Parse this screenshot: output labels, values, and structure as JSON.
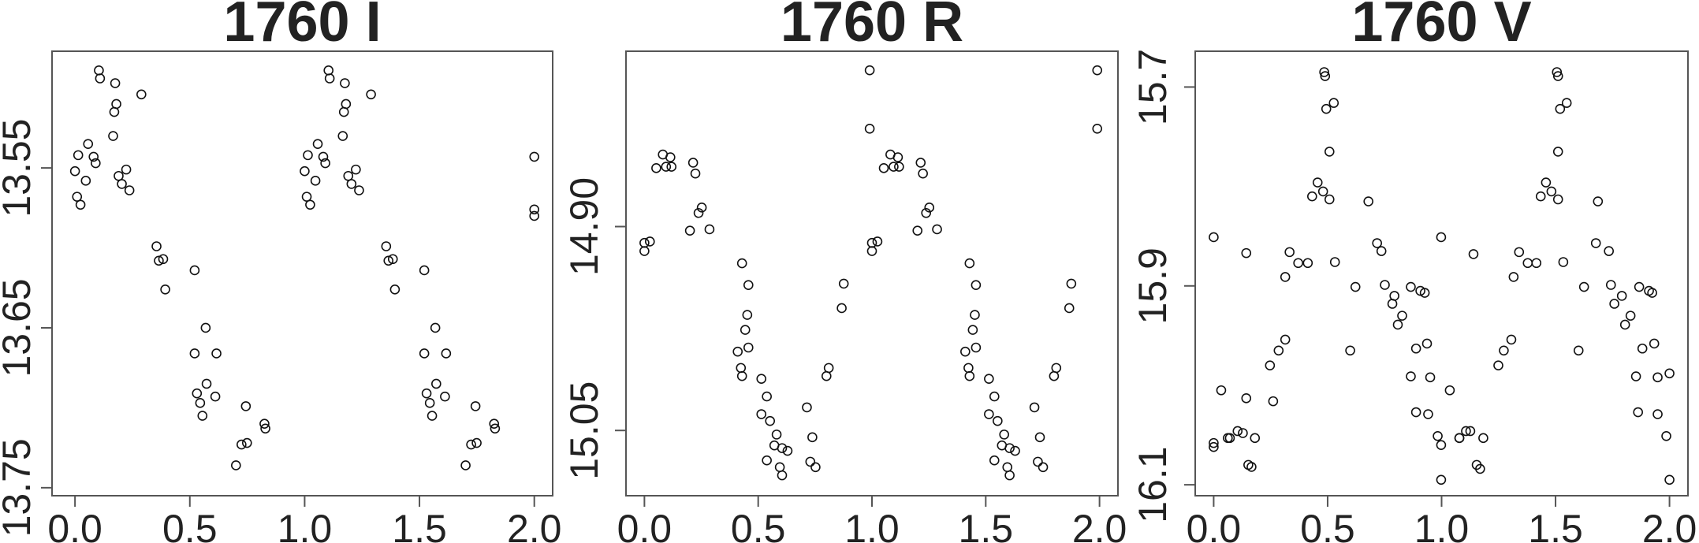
{
  "chart_data": [
    {
      "type": "scatter",
      "title": "1760 I",
      "x": [
        0.0,
        0.009,
        0.024,
        0.014,
        0.047,
        0.057,
        0.081,
        0.09,
        0.104,
        0.109,
        0.166,
        0.171,
        0.18,
        0.175,
        0.19,
        0.204,
        0.223,
        0.237,
        0.289,
        0.355,
        0.365,
        0.384,
        0.393,
        0.521,
        0.521,
        0.531,
        0.545,
        0.555,
        0.569,
        0.573,
        0.611,
        0.616,
        0.701,
        0.725,
        0.749,
        0.744,
        0.825,
        0.829,
        1.0,
        1.009,
        1.024,
        1.014,
        1.047,
        1.057,
        1.081,
        1.09,
        1.104,
        1.109,
        1.166,
        1.171,
        1.18,
        1.175,
        1.19,
        1.204,
        1.223,
        1.237,
        1.289,
        1.355,
        1.365,
        1.384,
        1.393,
        1.521,
        1.521,
        1.531,
        1.545,
        1.555,
        1.569,
        1.573,
        1.611,
        1.616,
        1.701,
        1.725,
        1.749,
        1.744,
        1.825,
        1.829,
        2.0,
        2.0,
        2.0
      ],
      "y": [
        13.552,
        13.568,
        13.573,
        13.542,
        13.558,
        13.535,
        13.543,
        13.547,
        13.489,
        13.494,
        13.53,
        13.515,
        13.51,
        13.497,
        13.555,
        13.56,
        13.551,
        13.564,
        13.504,
        13.599,
        13.608,
        13.607,
        13.626,
        13.614,
        13.666,
        13.691,
        13.697,
        13.705,
        13.65,
        13.685,
        13.693,
        13.666,
        13.736,
        13.723,
        13.722,
        13.699,
        13.71,
        13.713,
        13.552,
        13.568,
        13.573,
        13.542,
        13.558,
        13.535,
        13.543,
        13.547,
        13.489,
        13.494,
        13.53,
        13.515,
        13.51,
        13.497,
        13.555,
        13.56,
        13.551,
        13.564,
        13.504,
        13.599,
        13.608,
        13.607,
        13.626,
        13.614,
        13.666,
        13.691,
        13.697,
        13.705,
        13.65,
        13.685,
        13.693,
        13.666,
        13.736,
        13.723,
        13.722,
        13.699,
        13.71,
        13.713,
        13.543,
        13.576,
        13.58
      ],
      "xlim": [
        -0.1,
        2.08
      ],
      "ylim": [
        13.755,
        13.477
      ],
      "xticks": [
        {
          "value": 0,
          "label": "0.0"
        },
        0.5,
        {
          "value": 1,
          "label": "1.0"
        },
        1.5,
        {
          "value": 2,
          "label": "2.0"
        }
      ],
      "yticks": [
        13.55,
        13.65,
        13.75
      ]
    },
    {
      "type": "scatter",
      "title": "1760 R",
      "x": [
        0.0,
        0.0,
        0.024,
        0.052,
        0.081,
        0.095,
        0.114,
        0.119,
        0.2,
        0.214,
        0.224,
        0.238,
        0.252,
        0.286,
        0.429,
        0.41,
        0.424,
        0.429,
        0.443,
        0.452,
        0.457,
        0.457,
        0.514,
        0.514,
        0.538,
        0.552,
        0.571,
        0.581,
        0.538,
        0.595,
        0.605,
        0.605,
        0.629,
        0.714,
        0.729,
        0.752,
        0.738,
        0.8,
        0.81,
        0.867,
        0.876,
        0.99,
        0.99,
        1.0,
        1.0,
        1.024,
        1.052,
        1.081,
        1.095,
        1.114,
        1.119,
        1.2,
        1.214,
        1.224,
        1.238,
        1.252,
        1.286,
        1.429,
        1.41,
        1.424,
        1.429,
        1.443,
        1.452,
        1.457,
        1.457,
        1.514,
        1.514,
        1.538,
        1.552,
        1.571,
        1.581,
        1.538,
        1.595,
        1.605,
        1.605,
        1.629,
        1.714,
        1.729,
        1.752,
        1.738,
        1.8,
        1.81,
        1.867,
        1.876,
        1.99,
        1.99
      ],
      "y": [
        14.918,
        14.912,
        14.911,
        14.857,
        14.847,
        14.856,
        14.849,
        14.856,
        14.903,
        14.853,
        14.861,
        14.89,
        14.886,
        14.902,
        14.927,
        14.992,
        15.004,
        15.01,
        14.976,
        14.965,
        14.943,
        14.989,
        15.012,
        15.038,
        15.025,
        15.043,
        15.061,
        15.053,
        15.072,
        15.077,
        15.083,
        15.063,
        15.065,
        15.033,
        15.073,
        15.077,
        15.055,
        15.01,
        15.004,
        14.96,
        14.942,
        14.785,
        14.828,
        14.918,
        14.912,
        14.911,
        14.857,
        14.847,
        14.856,
        14.849,
        14.856,
        14.903,
        14.853,
        14.861,
        14.89,
        14.886,
        14.902,
        14.927,
        14.992,
        15.004,
        15.01,
        14.976,
        14.965,
        14.943,
        14.989,
        15.012,
        15.038,
        15.025,
        15.043,
        15.061,
        15.053,
        15.072,
        15.077,
        15.083,
        15.063,
        15.065,
        15.033,
        15.073,
        15.077,
        15.055,
        15.01,
        15.004,
        14.96,
        14.942,
        14.785,
        14.828
      ],
      "xlim": [
        -0.081,
        2.081
      ],
      "ylim": [
        15.098,
        14.771
      ],
      "xticks": [
        {
          "value": 0,
          "label": "0.0"
        },
        0.5,
        {
          "value": 1,
          "label": "1.0"
        },
        1.5,
        {
          "value": 2,
          "label": "2.0"
        }
      ],
      "yticks": [
        {
          "value": 14.9,
          "label": "14.90"
        },
        15.05
      ]
    },
    {
      "type": "scatter",
      "title": "1760 V",
      "x": [
        0,
        0,
        0,
        0.033,
        0.062,
        0.071,
        0.105,
        0.128,
        0.143,
        0.143,
        0.152,
        0.166,
        0.181,
        0.247,
        0.261,
        0.285,
        0.314,
        0.314,
        0.333,
        0.371,
        0.413,
        0.432,
        0.456,
        0.48,
        0.485,
        0.489,
        0.494,
        0.508,
        0.508,
        0.527,
        0.532,
        0.599,
        0.622,
        0.679,
        0.717,
        0.736,
        0.751,
        0.784,
        0.793,
        0.808,
        0.827,
        0.865,
        0.865,
        0.888,
        0.888,
        0.907,
        0.926,
        0.936,
        0.95,
        0.941,
        0.983,
        0.998,
        0.998,
        0.998,
        1.036,
        1.078,
        1.078,
        1.107,
        1.126,
        1.14,
        1.154,
        1.169,
        1.183,
        1.249,
        1.273,
        1.306,
        1.316,
        1.34,
        1.378,
        1.416,
        1.435,
        1.458,
        1.482,
        1.506,
        1.511,
        1.52,
        1.511,
        1.511,
        1.549,
        1.534,
        1.601,
        1.625,
        1.677,
        1.686,
        1.734,
        1.743,
        1.758,
        1.791,
        1.805,
        1.829,
        1.867,
        1.853,
        1.881,
        1.862,
        1.91,
        1.924,
        1.933,
        1.948,
        1.948,
        1.986,
        2.0,
        2.0
      ],
      "y": [
        15.851,
        16.058,
        16.062,
        16.005,
        16.053,
        16.053,
        16.046,
        16.048,
        15.867,
        16.013,
        16.08,
        16.082,
        16.053,
        15.98,
        16.016,
        15.965,
        15.954,
        15.891,
        15.866,
        15.877,
        15.877,
        15.81,
        15.796,
        15.805,
        15.685,
        15.689,
        15.722,
        15.765,
        15.813,
        15.716,
        15.876,
        15.965,
        15.901,
        15.815,
        15.857,
        15.865,
        15.899,
        15.918,
        15.91,
        15.939,
        15.93,
        15.901,
        15.991,
        15.963,
        16.027,
        15.905,
        15.907,
        15.958,
        15.992,
        16.029,
        16.051,
        16.06,
        16.095,
        15.851,
        16.005,
        16.053,
        16.053,
        16.046,
        16.046,
        15.868,
        16.08,
        16.084,
        16.053,
        15.98,
        15.965,
        15.954,
        15.891,
        15.866,
        15.877,
        15.877,
        15.81,
        15.796,
        15.805,
        15.685,
        15.689,
        15.722,
        15.765,
        15.813,
        15.716,
        15.876,
        15.965,
        15.901,
        15.857,
        15.815,
        15.865,
        15.899,
        15.918,
        15.91,
        15.939,
        15.93,
        15.901,
        15.991,
        15.963,
        16.027,
        15.905,
        15.907,
        15.958,
        15.992,
        16.029,
        16.051,
        16.095,
        15.988
      ],
      "xlim": [
        -0.081,
        2.081
      ],
      "ylim": [
        16.111,
        15.664
      ],
      "xticks": [
        {
          "value": 0,
          "label": "0.0"
        },
        0.5,
        {
          "value": 1,
          "label": "1.0"
        },
        1.5,
        {
          "value": 2,
          "label": "2.0"
        }
      ],
      "yticks": [
        15.7,
        15.9,
        16.1
      ]
    }
  ]
}
